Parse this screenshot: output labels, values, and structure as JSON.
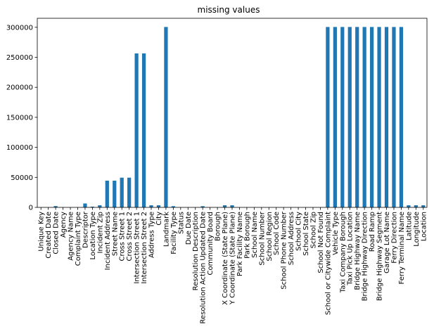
{
  "chart_data": {
    "type": "bar",
    "title": "missing values",
    "xlabel": "",
    "ylabel": "",
    "ylim": [
      0,
      315000
    ],
    "yticks": [
      0,
      50000,
      100000,
      150000,
      200000,
      250000,
      300000
    ],
    "ytick_labels": [
      "0",
      "50000",
      "100000",
      "150000",
      "200000",
      "250000",
      "300000"
    ],
    "bar_color": "#1f77b4",
    "grid": false,
    "legend": "none",
    "categories": [
      "Unique Key",
      "Created Date",
      "Closed Date",
      "Agency",
      "Agency Name",
      "Complaint Type",
      "Descriptor",
      "Location Type",
      "Incident Zip",
      "Incident Address",
      "Street Name",
      "Cross Street 1",
      "Cross Street 2",
      "Intersection Street 1",
      "Intersection Street 2",
      "Address Type",
      "City",
      "Landmark",
      "Facility Type",
      "Status",
      "Due Date",
      "Resolution Description",
      "Resolution Action Updated Date",
      "Community Board",
      "Borough",
      "X Coordinate (State Plane)",
      "Y Coordinate (State Plane)",
      "Park Facility Name",
      "Park Borough",
      "School Name",
      "School Number",
      "School Region",
      "School Code",
      "School Phone Number",
      "School Address",
      "School City",
      "School State",
      "School Zip",
      "School Not Found",
      "School or Citywide Complaint",
      "Vehicle Type",
      "Taxi Company Borough",
      "Taxi Pick Up Location",
      "Bridge Highway Name",
      "Bridge Highway Direction",
      "Road Ramp",
      "Bridge Highway Segment",
      "Garage Lot Name",
      "Ferry Direction",
      "Ferry Terminal Name",
      "Latitude",
      "Longitude",
      "Location"
    ],
    "values": [
      0,
      0,
      2200,
      0,
      0,
      0,
      6500,
      1200,
      3500,
      44500,
      44500,
      49500,
      49500,
      256500,
      256500,
      3500,
      3500,
      300500,
      2000,
      0,
      0,
      0,
      2000,
      0,
      0,
      3500,
      3500,
      0,
      0,
      0,
      0,
      0,
      0,
      0,
      0,
      0,
      0,
      0,
      0,
      300500,
      300500,
      300500,
      300500,
      300500,
      300500,
      300500,
      300500,
      300500,
      300500,
      300500,
      3500,
      3500,
      3500
    ]
  }
}
